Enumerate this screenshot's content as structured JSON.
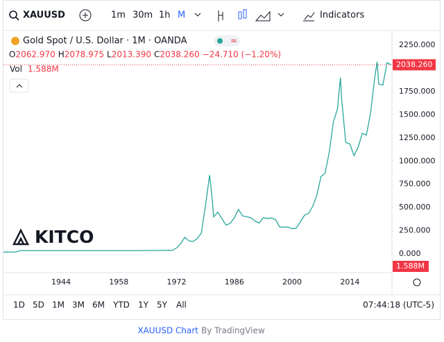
{
  "toolbar": {
    "symbol": "XAUUSD",
    "intervals": [
      "1m",
      "30m",
      "1h",
      "M"
    ],
    "indicators": "Indicators"
  },
  "legend": {
    "title": "Gold Spot / U.S. Dollar · 1M · OANDA",
    "labels": [
      "O",
      "H",
      "L",
      "C"
    ],
    "values": [
      "2062.970",
      "2078.975",
      "2013.390",
      "2038.260"
    ],
    "change": "−24.710 (−1.20%)",
    "vol_label": "Vol",
    "vol": "1.588M"
  },
  "chart_data": {
    "type": "line",
    "color": "#26a69a",
    "x": [
      1930,
      1933,
      1934,
      1945,
      1960,
      1968,
      1971,
      1972,
      1973,
      1974,
      1975,
      1976,
      1977,
      1978,
      1979,
      1980,
      1980.5,
      1981,
      1982,
      1983,
      1984,
      1985,
      1986,
      1987,
      1988,
      1989,
      1990,
      1991,
      1992,
      1993,
      1994,
      1995,
      1996,
      1997,
      1998,
      1999,
      2000,
      2001,
      2002,
      2003,
      2004,
      2005,
      2006,
      2007,
      2008,
      2009,
      2010,
      2011,
      2011.7,
      2012,
      2013,
      2014,
      2015,
      2016,
      2017,
      2018,
      2019,
      2020,
      2020.6,
      2021,
      2022,
      2023,
      2024
    ],
    "values": [
      20,
      20,
      35,
      35,
      35,
      38,
      40,
      65,
      110,
      180,
      140,
      135,
      165,
      225,
      520,
      850,
      650,
      400,
      450,
      380,
      310,
      330,
      390,
      480,
      410,
      400,
      390,
      355,
      333,
      390,
      383,
      387,
      369,
      290,
      288,
      290,
      272,
      278,
      347,
      416,
      438,
      513,
      632,
      834,
      870,
      1096,
      1420,
      1565,
      1900,
      1675,
      1200,
      1185,
      1060,
      1150,
      1300,
      1280,
      1515,
      1890,
      2070,
      1830,
      1820,
      2062,
      2038.26
    ],
    "xlim": [
      1930.05,
      2024.2
    ],
    "ylim": [
      -194,
      2325
    ],
    "xticks": [
      1944,
      1958,
      1972,
      1986,
      2000,
      2014
    ],
    "yticks": [
      {
        "value": 2250,
        "label": "2250.000"
      },
      {
        "value": 2000,
        "label": "2000.000"
      },
      {
        "value": 1750,
        "label": "1750.000"
      },
      {
        "value": 1500,
        "label": "1500.000"
      },
      {
        "value": 1250,
        "label": "1250.000"
      },
      {
        "value": 1000,
        "label": "1000.000"
      },
      {
        "value": 750,
        "label": "750.000"
      },
      {
        "value": 500,
        "label": "500.000"
      },
      {
        "value": 250,
        "label": "250.000"
      },
      {
        "value": 0,
        "label": "0.000"
      }
    ],
    "last_price": {
      "value": 2038.26,
      "label": "2038.260"
    },
    "volume_label": "1.588M"
  },
  "logo": "KITCO",
  "ranges": [
    "1D",
    "5D",
    "1M",
    "3M",
    "6M",
    "YTD",
    "1Y",
    "5Y",
    "All"
  ],
  "clock": "07:44:18 (UTC-5)",
  "footer": {
    "link": "XAUUSD Chart",
    "by": "By TradingView"
  }
}
